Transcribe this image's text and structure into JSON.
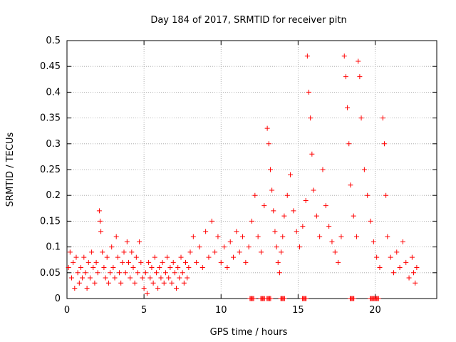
{
  "chart_data": {
    "type": "scatter",
    "title": "Day 184 of 2017, SRMTID for receiver pitn",
    "xlabel": "GPS time / hours",
    "ylabel": "SRMTID / TECUs",
    "xlim": [
      0,
      24
    ],
    "ylim": [
      0,
      0.5
    ],
    "grid": true,
    "x_ticks": [
      0,
      5,
      10,
      15,
      20
    ],
    "x_tick_labels": [
      "0",
      "5",
      "10",
      "15",
      "20"
    ],
    "y_ticks": [
      0,
      0.05,
      0.1,
      0.15,
      0.2,
      0.25,
      0.3,
      0.35,
      0.4,
      0.45,
      0.5
    ],
    "y_tick_labels": [
      "0",
      "0.05",
      "0.1",
      "0.15",
      "0.2",
      "0.25",
      "0.3",
      "0.35",
      "0.4",
      "0.45",
      "0.5"
    ],
    "marker": "+",
    "marker_color": "#ff0000",
    "series": [
      {
        "name": "SRMTID",
        "points": [
          [
            0.1,
            0.06
          ],
          [
            0.2,
            0.09
          ],
          [
            0.3,
            0.04
          ],
          [
            0.4,
            0.07
          ],
          [
            0.5,
            0.02
          ],
          [
            0.6,
            0.08
          ],
          [
            0.7,
            0.05
          ],
          [
            0.8,
            0.03
          ],
          [
            0.9,
            0.06
          ],
          [
            1.0,
            0.04
          ],
          [
            1.1,
            0.08
          ],
          [
            1.2,
            0.05
          ],
          [
            1.3,
            0.02
          ],
          [
            1.4,
            0.07
          ],
          [
            1.5,
            0.04
          ],
          [
            1.6,
            0.09
          ],
          [
            1.7,
            0.06
          ],
          [
            1.8,
            0.03
          ],
          [
            1.9,
            0.07
          ],
          [
            2.0,
            0.05
          ],
          [
            2.1,
            0.17
          ],
          [
            2.15,
            0.15
          ],
          [
            2.2,
            0.13
          ],
          [
            2.3,
            0.09
          ],
          [
            2.4,
            0.06
          ],
          [
            2.5,
            0.04
          ],
          [
            2.6,
            0.08
          ],
          [
            2.7,
            0.03
          ],
          [
            2.8,
            0.05
          ],
          [
            2.9,
            0.1
          ],
          [
            3.0,
            0.06
          ],
          [
            3.1,
            0.04
          ],
          [
            3.2,
            0.12
          ],
          [
            3.3,
            0.08
          ],
          [
            3.4,
            0.05
          ],
          [
            3.5,
            0.03
          ],
          [
            3.6,
            0.07
          ],
          [
            3.7,
            0.09
          ],
          [
            3.8,
            0.05
          ],
          [
            3.9,
            0.11
          ],
          [
            4.0,
            0.07
          ],
          [
            4.1,
            0.04
          ],
          [
            4.2,
            0.09
          ],
          [
            4.3,
            0.06
          ],
          [
            4.4,
            0.03
          ],
          [
            4.5,
            0.08
          ],
          [
            4.6,
            0.05
          ],
          [
            4.7,
            0.11
          ],
          [
            4.8,
            0.07
          ],
          [
            4.9,
            0.04
          ],
          [
            5.0,
            0.02
          ],
          [
            5.1,
            0.05
          ],
          [
            5.2,
            0.01
          ],
          [
            5.3,
            0.07
          ],
          [
            5.4,
            0.04
          ],
          [
            5.5,
            0.06
          ],
          [
            5.6,
            0.03
          ],
          [
            5.7,
            0.08
          ],
          [
            5.8,
            0.05
          ],
          [
            5.9,
            0.02
          ],
          [
            6.0,
            0.06
          ],
          [
            6.1,
            0.04
          ],
          [
            6.2,
            0.07
          ],
          [
            6.3,
            0.03
          ],
          [
            6.4,
            0.05
          ],
          [
            6.5,
            0.08
          ],
          [
            6.6,
            0.04
          ],
          [
            6.7,
            0.06
          ],
          [
            6.8,
            0.03
          ],
          [
            6.9,
            0.07
          ],
          [
            7.0,
            0.05
          ],
          [
            7.1,
            0.02
          ],
          [
            7.2,
            0.06
          ],
          [
            7.3,
            0.04
          ],
          [
            7.4,
            0.08
          ],
          [
            7.5,
            0.05
          ],
          [
            7.6,
            0.03
          ],
          [
            7.7,
            0.07
          ],
          [
            7.8,
            0.04
          ],
          [
            7.9,
            0.06
          ],
          [
            8.0,
            0.09
          ],
          [
            8.2,
            0.12
          ],
          [
            8.4,
            0.07
          ],
          [
            8.6,
            0.1
          ],
          [
            8.8,
            0.06
          ],
          [
            9.0,
            0.13
          ],
          [
            9.2,
            0.08
          ],
          [
            9.4,
            0.15
          ],
          [
            9.6,
            0.09
          ],
          [
            9.8,
            0.12
          ],
          [
            10.0,
            0.07
          ],
          [
            10.2,
            0.1
          ],
          [
            10.4,
            0.06
          ],
          [
            10.6,
            0.11
          ],
          [
            10.8,
            0.08
          ],
          [
            11.0,
            0.13
          ],
          [
            11.2,
            0.09
          ],
          [
            11.4,
            0.12
          ],
          [
            11.6,
            0.07
          ],
          [
            11.8,
            0.1
          ],
          [
            12.0,
            0.15
          ],
          [
            12.2,
            0.2
          ],
          [
            12.4,
            0.12
          ],
          [
            12.6,
            0.09
          ],
          [
            12.8,
            0.18
          ],
          [
            13.0,
            0.33
          ],
          [
            13.1,
            0.3
          ],
          [
            13.2,
            0.25
          ],
          [
            13.3,
            0.21
          ],
          [
            13.4,
            0.17
          ],
          [
            13.5,
            0.13
          ],
          [
            13.6,
            0.1
          ],
          [
            13.7,
            0.07
          ],
          [
            13.8,
            0.05
          ],
          [
            13.9,
            0.09
          ],
          [
            14.0,
            0.12
          ],
          [
            14.1,
            0.16
          ],
          [
            14.3,
            0.2
          ],
          [
            14.5,
            0.24
          ],
          [
            14.7,
            0.17
          ],
          [
            14.9,
            0.13
          ],
          [
            15.1,
            0.1
          ],
          [
            15.3,
            0.14
          ],
          [
            15.5,
            0.19
          ],
          [
            15.6,
            0.47
          ],
          [
            15.7,
            0.4
          ],
          [
            15.8,
            0.35
          ],
          [
            15.9,
            0.28
          ],
          [
            16.0,
            0.21
          ],
          [
            16.2,
            0.16
          ],
          [
            16.4,
            0.12
          ],
          [
            16.6,
            0.25
          ],
          [
            16.8,
            0.18
          ],
          [
            17.0,
            0.14
          ],
          [
            17.2,
            0.11
          ],
          [
            17.4,
            0.09
          ],
          [
            17.6,
            0.07
          ],
          [
            17.8,
            0.12
          ],
          [
            18.0,
            0.47
          ],
          [
            18.1,
            0.43
          ],
          [
            18.2,
            0.37
          ],
          [
            18.3,
            0.3
          ],
          [
            18.4,
            0.22
          ],
          [
            18.6,
            0.16
          ],
          [
            18.8,
            0.12
          ],
          [
            18.9,
            0.46
          ],
          [
            19.0,
            0.43
          ],
          [
            19.1,
            0.35
          ],
          [
            19.3,
            0.25
          ],
          [
            19.5,
            0.2
          ],
          [
            19.7,
            0.15
          ],
          [
            19.9,
            0.11
          ],
          [
            20.1,
            0.08
          ],
          [
            20.3,
            0.06
          ],
          [
            20.5,
            0.35
          ],
          [
            20.6,
            0.3
          ],
          [
            20.7,
            0.2
          ],
          [
            20.8,
            0.12
          ],
          [
            21.0,
            0.08
          ],
          [
            21.2,
            0.05
          ],
          [
            21.4,
            0.09
          ],
          [
            21.6,
            0.06
          ],
          [
            21.8,
            0.11
          ],
          [
            22.0,
            0.07
          ],
          [
            22.2,
            0.04
          ],
          [
            22.4,
            0.08
          ],
          [
            22.5,
            0.05
          ],
          [
            22.6,
            0.03
          ],
          [
            22.7,
            0.06
          ]
        ]
      }
    ],
    "baseline_zero_clusters_x": [
      12.0,
      12.7,
      13.1,
      14.0,
      15.4,
      18.5,
      19.8,
      20.1
    ]
  }
}
